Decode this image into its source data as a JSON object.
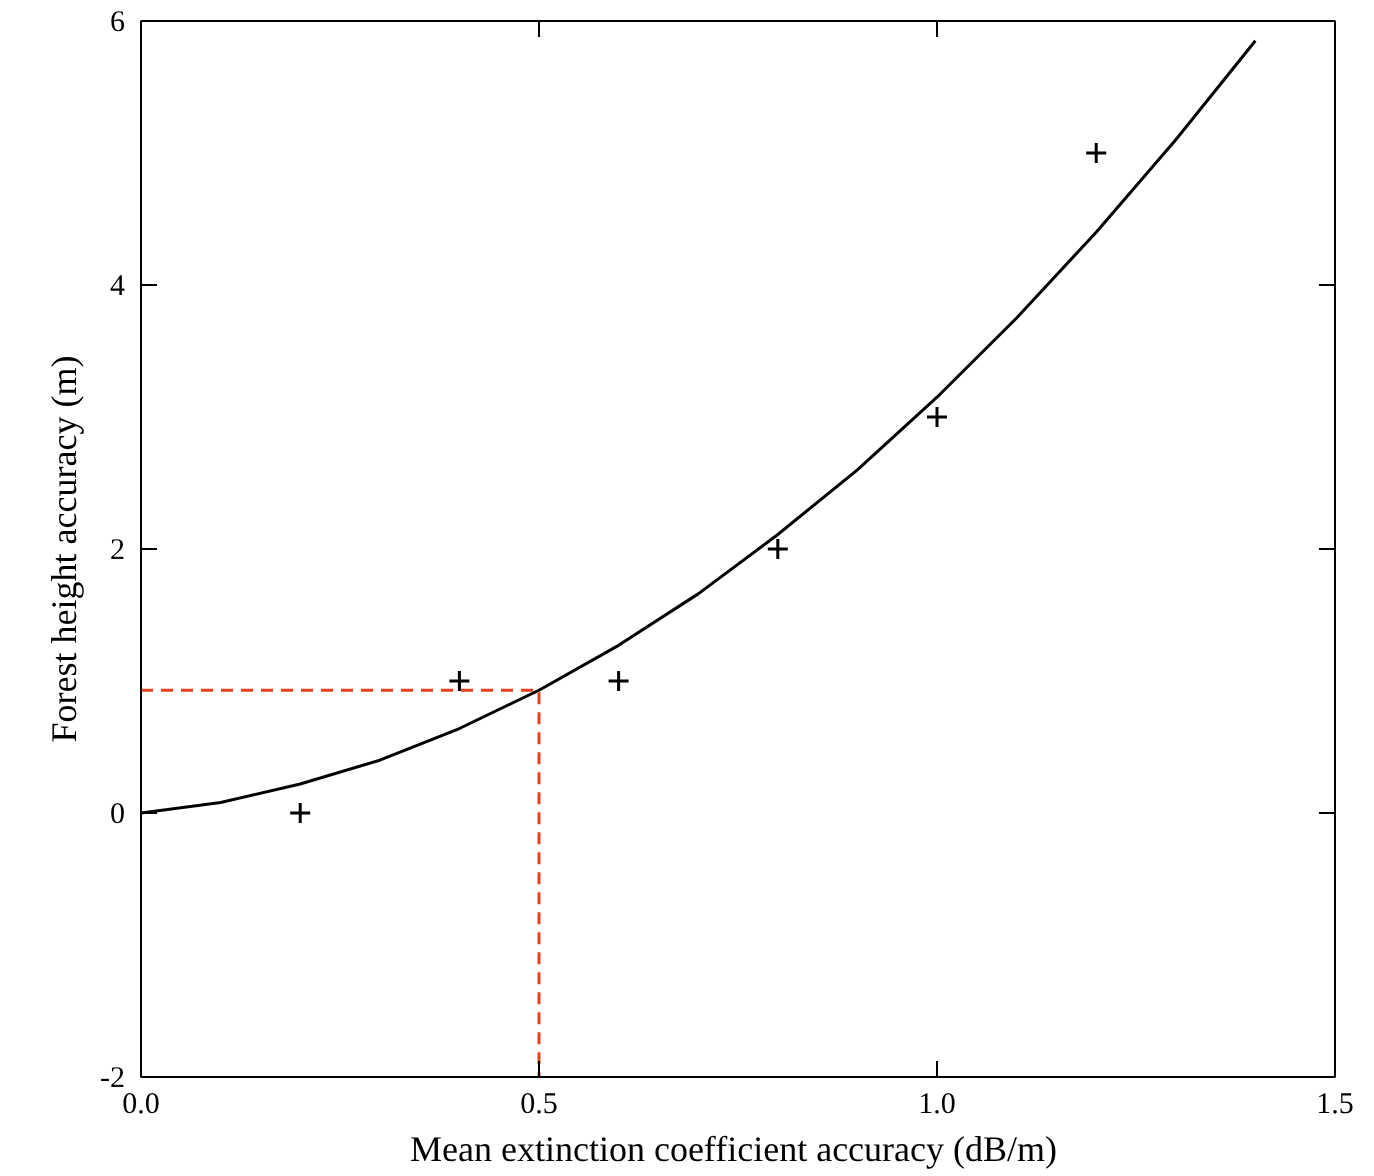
{
  "chart_data": {
    "type": "scatter",
    "xlabel": "Mean extinction coefficient  accuracy (dB/m)",
    "ylabel": "Forest height accuracy (m)",
    "xlim": [
      0,
      1.5
    ],
    "ylim": [
      -2,
      6
    ],
    "xticks": [
      {
        "value": 0,
        "label": "0.0"
      },
      {
        "value": 0.5,
        "label": "0.5"
      },
      {
        "value": 1,
        "label": "1.0"
      },
      {
        "value": 1.5,
        "label": "1.5"
      }
    ],
    "yticks": [
      -2,
      0,
      2,
      4,
      6
    ],
    "grid": false,
    "series": [
      {
        "type": "line",
        "color": "#000000",
        "line_style": "solid",
        "x": [
          0,
          0.1,
          0.2,
          0.3,
          0.4,
          0.5,
          0.6,
          0.7,
          0.8,
          0.9,
          1.0,
          1.1,
          1.2,
          1.3,
          1.4
        ],
        "values": [
          0,
          0.08,
          0.22,
          0.4,
          0.64,
          0.93,
          1.27,
          1.66,
          2.11,
          2.6,
          3.15,
          3.75,
          4.4,
          5.1,
          5.85
        ]
      },
      {
        "type": "line",
        "color": "#e8401c",
        "line_style": "dashed",
        "x": [
          0,
          0.5,
          0.5
        ],
        "values": [
          0.93,
          0.93,
          -2
        ]
      },
      {
        "color": "#000000",
        "marker": "cross",
        "x": [
          0.2,
          0.4,
          0.6,
          0.8,
          1.0,
          1.2
        ],
        "values": [
          0,
          1,
          1,
          2,
          3,
          5
        ]
      }
    ]
  }
}
